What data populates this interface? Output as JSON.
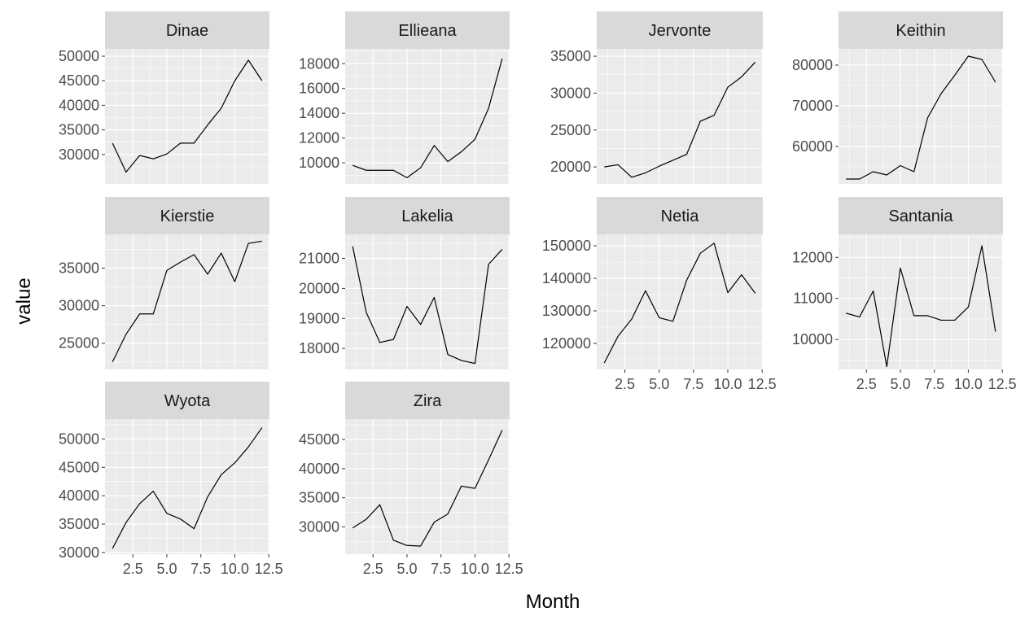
{
  "chart_data": {
    "type": "line",
    "layout": "facet_wrap",
    "facet_columns": 4,
    "xlabel": "Month",
    "ylabel": "value",
    "x": [
      1,
      2,
      3,
      4,
      5,
      6,
      7,
      8,
      9,
      10,
      11,
      12
    ],
    "xlim": [
      0.45,
      12.55
    ],
    "xticks": [
      2.5,
      5.0,
      7.5,
      10.0,
      12.5
    ],
    "xtick_labels": [
      "2.5",
      "5.0",
      "7.5",
      "10.0",
      "12.5"
    ],
    "grid": true,
    "colors": {
      "panel": "#EBEBEB",
      "strip": "#D9D9D9",
      "grid": "#FFFFFF",
      "line": "#000000",
      "tick_text": "#4D4D4D"
    },
    "panels": [
      {
        "name": "Dinae",
        "ylim": [
          24000,
          51500
        ],
        "yticks": [
          30000,
          35000,
          40000,
          45000,
          50000
        ],
        "values": [
          32300,
          26400,
          29800,
          29100,
          30100,
          32300,
          32300,
          36000,
          39400,
          45000,
          49200,
          45000
        ]
      },
      {
        "name": "Ellieana",
        "ylim": [
          8300,
          19200
        ],
        "yticks": [
          10000,
          12000,
          14000,
          16000,
          18000
        ],
        "values": [
          9800,
          9400,
          9400,
          9400,
          8800,
          9600,
          11400,
          10100,
          10900,
          11900,
          14400,
          18400
        ]
      },
      {
        "name": "Jervonte",
        "ylim": [
          17700,
          36000
        ],
        "yticks": [
          20000,
          25000,
          30000,
          35000
        ],
        "values": [
          20000,
          20300,
          18600,
          19200,
          20100,
          20900,
          21700,
          26200,
          27000,
          30800,
          32200,
          34200
        ]
      },
      {
        "name": "Keithin",
        "ylim": [
          50800,
          84000
        ],
        "yticks": [
          60000,
          70000,
          80000
        ],
        "values": [
          52000,
          52000,
          53800,
          53000,
          55300,
          53800,
          67000,
          73000,
          77500,
          82200,
          81400,
          75800
        ]
      },
      {
        "name": "Kierstie",
        "ylim": [
          21500,
          39500
        ],
        "yticks": [
          25000,
          30000,
          35000
        ],
        "values": [
          22500,
          26200,
          28900,
          28900,
          34700,
          35800,
          36800,
          34200,
          37000,
          33200,
          38300,
          38600
        ]
      },
      {
        "name": "Lakelia",
        "ylim": [
          17300,
          21800
        ],
        "yticks": [
          18000,
          19000,
          20000,
          21000
        ],
        "values": [
          21400,
          19200,
          18200,
          18300,
          19400,
          18800,
          19700,
          17800,
          17600,
          17500,
          20800,
          21300
        ]
      },
      {
        "name": "Netia",
        "ylim": [
          112000,
          153500
        ],
        "yticks": [
          120000,
          130000,
          140000,
          150000
        ],
        "values": [
          114000,
          122200,
          127500,
          136200,
          127900,
          126800,
          139400,
          147700,
          150800,
          135600,
          141100,
          135400
        ]
      },
      {
        "name": "Santania",
        "ylim": [
          9270,
          12560
        ],
        "yticks": [
          10000,
          11000,
          12000
        ],
        "values": [
          10640,
          10550,
          11180,
          9340,
          11740,
          10580,
          10580,
          10470,
          10470,
          10790,
          12280,
          10190
        ]
      },
      {
        "name": "Wyota",
        "ylim": [
          29700,
          53500
        ],
        "yticks": [
          30000,
          35000,
          40000,
          45000,
          50000
        ],
        "values": [
          30700,
          35300,
          38600,
          40800,
          36900,
          35900,
          34200,
          39800,
          43700,
          45800,
          48600,
          52000
        ]
      },
      {
        "name": "Zira",
        "ylim": [
          25300,
          48500
        ],
        "yticks": [
          30000,
          35000,
          40000,
          45000
        ],
        "values": [
          29800,
          31300,
          33800,
          27700,
          26800,
          26700,
          30800,
          32200,
          37000,
          36600,
          41500,
          46600
        ]
      }
    ]
  }
}
